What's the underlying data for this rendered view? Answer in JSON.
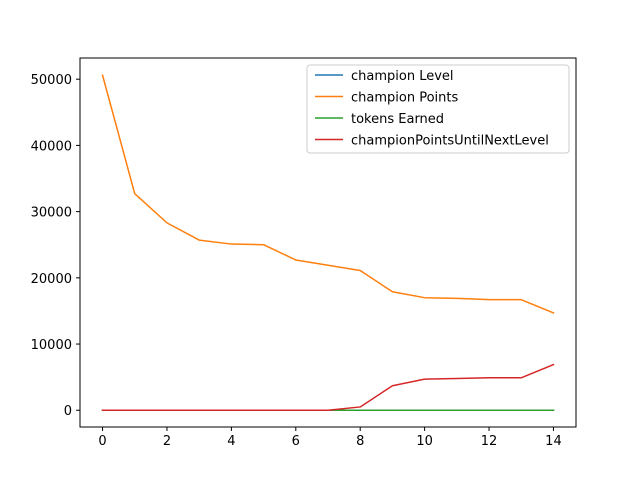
{
  "chart_data": {
    "type": "line",
    "title": "",
    "xlabel": "",
    "ylabel": "",
    "x": [
      0,
      1,
      2,
      3,
      4,
      5,
      6,
      7,
      8,
      9,
      10,
      11,
      12,
      13,
      14
    ],
    "xlim": [
      -0.7,
      14.7
    ],
    "ylim": [
      -2530,
      53200
    ],
    "xticks": [
      0,
      2,
      4,
      6,
      8,
      10,
      12,
      14
    ],
    "yticks": [
      0,
      10000,
      20000,
      30000,
      40000,
      50000
    ],
    "grid": false,
    "legend_position": "top-right",
    "series": [
      {
        "name": "champion Level",
        "color": "#1f77b4",
        "values": [
          7,
          7,
          7,
          7,
          7,
          7,
          7,
          7,
          6,
          6,
          6,
          6,
          6,
          6,
          5
        ]
      },
      {
        "name": "champion Points",
        "color": "#ff7f0e",
        "values": [
          50600,
          32700,
          28300,
          25700,
          25100,
          25000,
          22700,
          21900,
          21100,
          17900,
          17000,
          16900,
          16700,
          16700,
          14700
        ]
      },
      {
        "name": "tokens Earned",
        "color": "#2ca02c",
        "values": [
          0,
          0,
          0,
          0,
          0,
          0,
          0,
          0,
          0,
          0,
          0,
          0,
          0,
          0,
          0
        ]
      },
      {
        "name": "championPointsUntilNextLevel",
        "color": "#d62728",
        "values": [
          0,
          0,
          0,
          0,
          0,
          0,
          0,
          0,
          500,
          3700,
          4700,
          4800,
          4900,
          4900,
          6900
        ]
      }
    ]
  }
}
